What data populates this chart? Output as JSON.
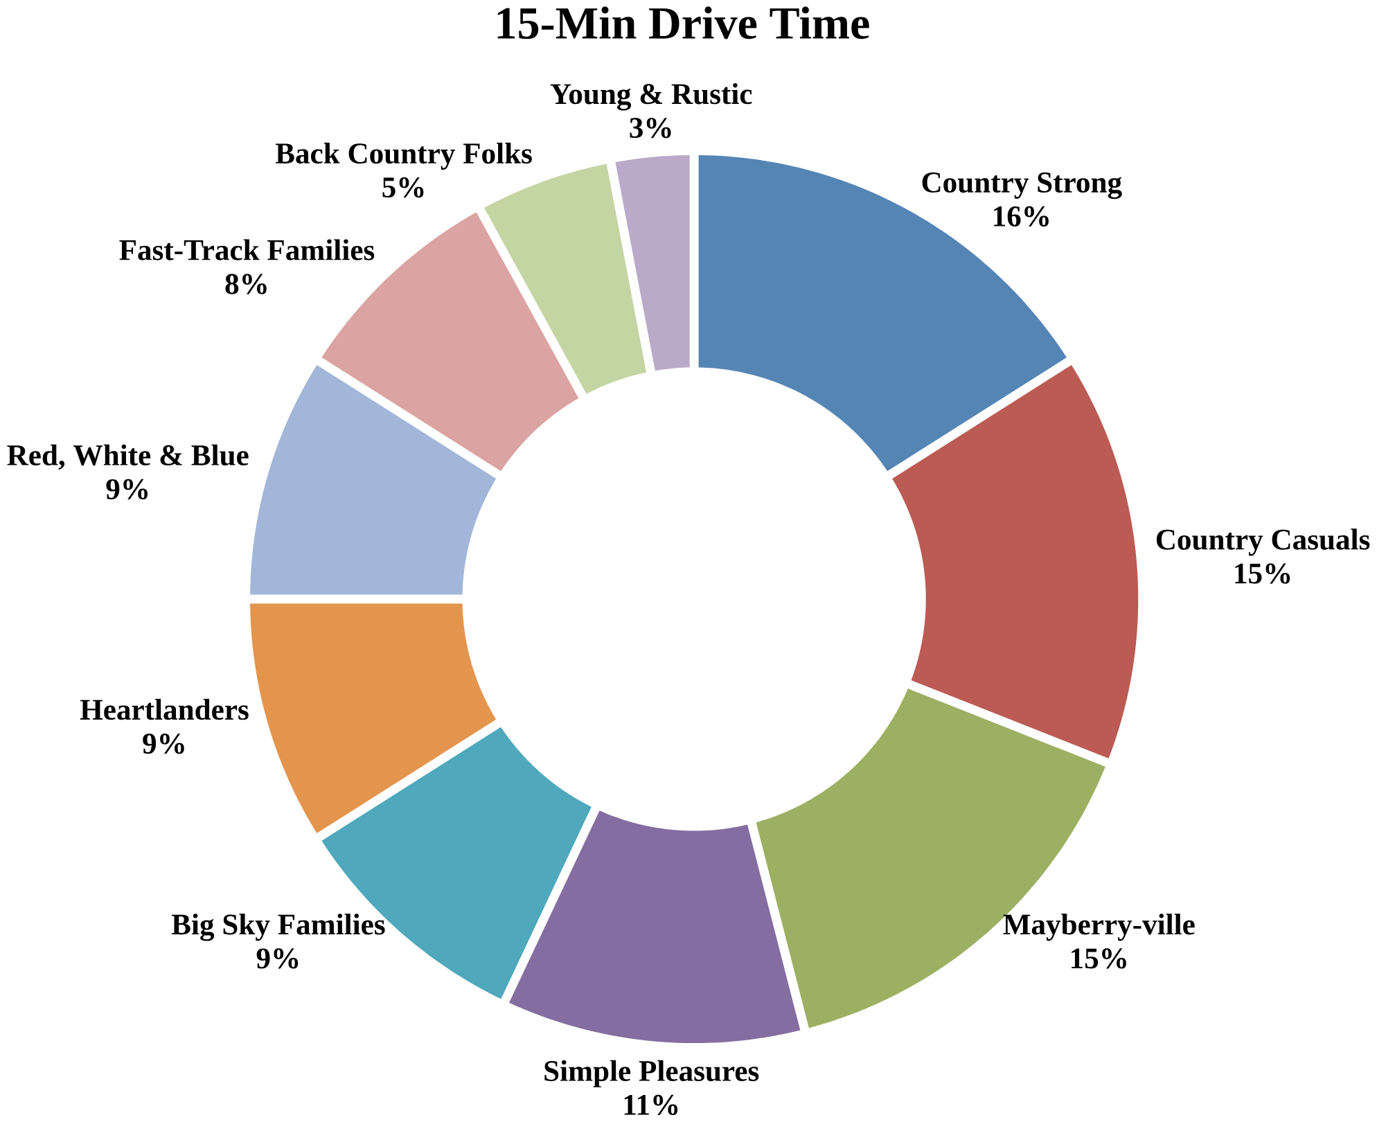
{
  "chart_data": {
    "type": "donut",
    "title": "15-Min Drive Time",
    "categories": [
      "Country Strong",
      "Country Casuals",
      "Mayberry-ville",
      "Simple Pleasures",
      "Big Sky Families",
      "Heartlanders",
      "Red, White & Blue",
      "Fast-Track Families",
      "Back Country Folks",
      "Young & Rustic"
    ],
    "values": [
      16,
      15,
      15,
      11,
      9,
      9,
      9,
      8,
      5,
      3
    ],
    "colors": [
      "#5585b5",
      "#bb5b53",
      "#9bb062",
      "#846da0",
      "#4fa8bc",
      "#e3954d",
      "#a2b6d9",
      "#dba3a1",
      "#c4d5a4",
      "#baa9c8"
    ],
    "value_labels": [
      "16%",
      "15%",
      "15%",
      "11%",
      "9%",
      "9%",
      "9%",
      "8%",
      "5%",
      "3%"
    ]
  }
}
